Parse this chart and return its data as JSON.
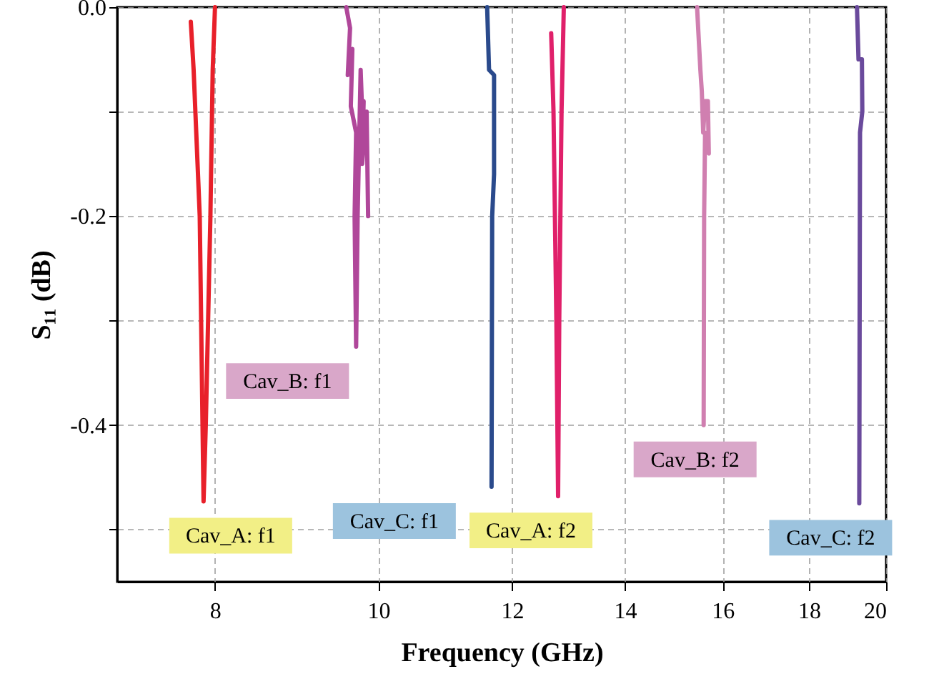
{
  "chart_data": {
    "type": "line",
    "xlabel": "Frequency (GHz)",
    "ylabel": "S₁₁ (dB)",
    "log": "x",
    "xlim": [
      7,
      20
    ],
    "ylim": [
      -0.55,
      0
    ],
    "xticks": [
      8,
      10,
      12,
      14,
      16,
      18,
      20
    ],
    "yticks": [
      {
        "value": 0,
        "label": "0.0"
      },
      {
        "value": -0.1,
        "label": null
      },
      -0.2,
      {
        "value": -0.3,
        "label": null
      },
      -0.4,
      {
        "value": -0.5,
        "label": null
      }
    ],
    "grid": true,
    "series": [
      {
        "color": "#e8202a",
        "x": [
          7.74,
          7.77,
          7.835,
          7.865,
          7.876,
          7.9,
          7.95,
          7.975,
          8.0
        ],
        "values": [
          -0.014,
          -0.06,
          -0.2,
          -0.4,
          -0.473,
          -0.4,
          -0.2,
          -0.06,
          0
        ]
      },
      {
        "color": "#b0479a",
        "x": [
          9.57,
          9.62,
          9.59,
          9.65,
          9.63,
          9.7,
          9.68,
          9.7,
          9.72,
          9.76,
          9.78,
          9.8,
          9.78,
          9.84,
          9.86
        ],
        "values": [
          0,
          -0.02,
          -0.065,
          -0.04,
          -0.095,
          -0.12,
          -0.2,
          -0.325,
          -0.2,
          -0.06,
          -0.1,
          -0.09,
          -0.15,
          -0.1,
          -0.2
        ]
      },
      {
        "color": "#2a4a8c",
        "x": [
          11.6,
          11.63,
          11.71,
          11.71,
          11.68,
          11.67
        ],
        "values": [
          0,
          -0.06,
          -0.065,
          -0.16,
          -0.2,
          -0.459
        ]
      },
      {
        "color": "#e0206a",
        "x": [
          12.66,
          12.7,
          12.75,
          12.78,
          12.8,
          12.84,
          12.88
        ],
        "values": [
          -0.025,
          -0.1,
          -0.3,
          -0.468,
          -0.3,
          -0.1,
          0
        ]
      },
      {
        "color": "#d07fb0",
        "x": [
          15.45,
          15.52,
          15.55,
          15.58,
          15.62,
          15.68,
          15.7,
          15.62,
          15.6,
          15.59
        ],
        "values": [
          0,
          -0.06,
          -0.08,
          -0.12,
          -0.09,
          -0.09,
          -0.14,
          -0.12,
          -0.2,
          -0.4
        ]
      },
      {
        "color": "#6a4a9c",
        "x": [
          19.22,
          19.26,
          19.35,
          19.36,
          19.3,
          19.28
        ],
        "values": [
          0,
          -0.05,
          -0.05,
          -0.1,
          -0.12,
          -0.475
        ]
      }
    ],
    "annotations": [
      "Cav_A: f1",
      "Cav_B: f1",
      "Cav_C: f1",
      "Cav_A: f2",
      "Cav_B: f2",
      "Cav_C: f2"
    ]
  }
}
